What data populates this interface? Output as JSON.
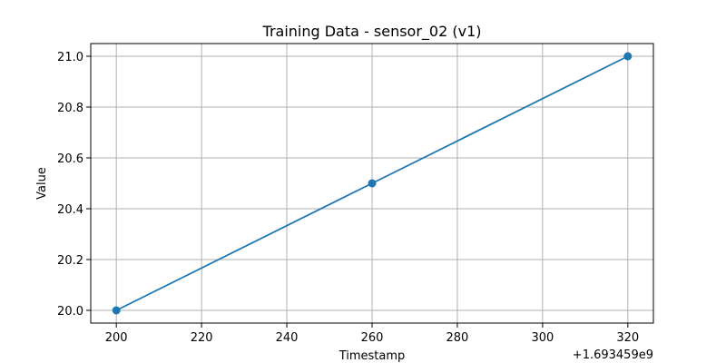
{
  "chart_data": {
    "type": "line",
    "title": "Training Data - sensor_02 (v1)",
    "xlabel": "Timestamp",
    "ylabel": "Value",
    "x_offset_label": "+1.693459e9",
    "xlim": [
      194,
      326
    ],
    "ylim": [
      19.95,
      21.05
    ],
    "x_ticks": [
      200,
      220,
      240,
      260,
      280,
      300,
      320
    ],
    "x_tick_labels": [
      "200",
      "220",
      "240",
      "260",
      "280",
      "300",
      "320"
    ],
    "y_ticks": [
      20.0,
      20.2,
      20.4,
      20.6,
      20.8,
      21.0
    ],
    "y_tick_labels": [
      "20.0",
      "20.2",
      "20.4",
      "20.6",
      "20.8",
      "21.0"
    ],
    "grid": true,
    "series": [
      {
        "x": [
          200,
          260,
          320
        ],
        "y": [
          20.0,
          20.5,
          21.0
        ],
        "color": "#1f77b4",
        "marker": "circle"
      }
    ]
  }
}
